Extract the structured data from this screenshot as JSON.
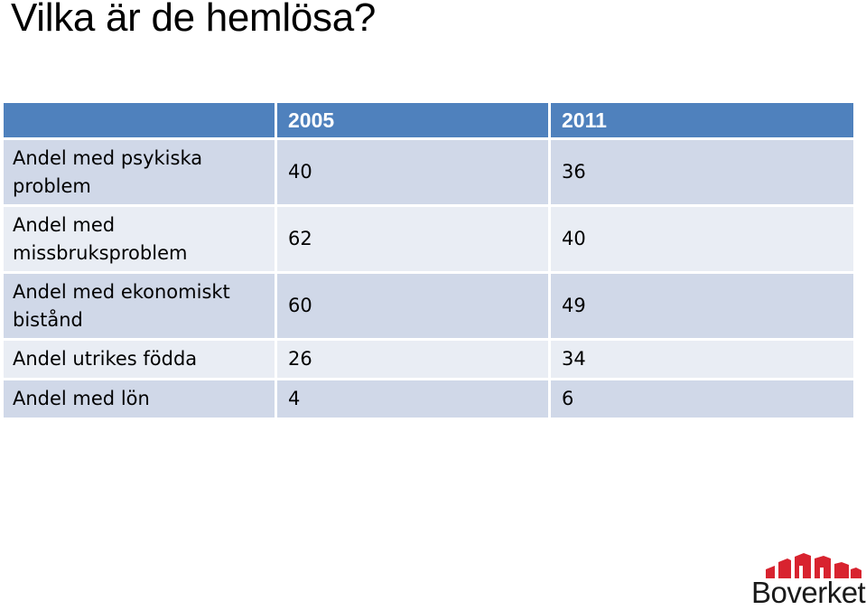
{
  "slide": {
    "title": "Vilka är de hemlösa?"
  },
  "table": {
    "header": [
      "",
      "2005",
      "2011"
    ],
    "rows": [
      {
        "label": "Andel med psykiska problem",
        "v2005": "40",
        "v2011": "36"
      },
      {
        "label": "Andel med missbruksproblem",
        "v2005": "62",
        "v2011": "40"
      },
      {
        "label": "Andel med ekonomiskt bistånd",
        "v2005": "60",
        "v2011": "49"
      },
      {
        "label": "Andel utrikes födda",
        "v2005": "26",
        "v2011": "34"
      },
      {
        "label": "Andel med lön",
        "v2005": "4",
        "v2011": "6"
      }
    ]
  },
  "logo": {
    "text": "Boverket",
    "accent_color": "#d8232f"
  },
  "colors": {
    "header_bg": "#4f81bd",
    "row_band_dark": "#d0d8e8",
    "row_band_light": "#e9edf4"
  }
}
